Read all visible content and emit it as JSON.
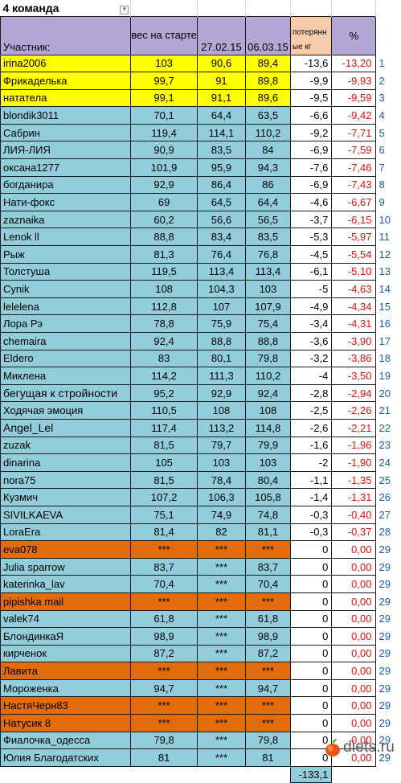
{
  "title": "4 команда",
  "headers": {
    "name": "Участник:",
    "start": "вес на старте",
    "d1": "27.02.15",
    "d2": "06.03.15",
    "lost": "потерянные кг",
    "pct": "%"
  },
  "rows": [
    {
      "name": "irina2006",
      "start": "103",
      "d1": "90,6",
      "d2": "89,4",
      "lost": "-13,6",
      "pct": "-13,20",
      "rank": "1",
      "color": "yellow"
    },
    {
      "name": "Фрикаделька",
      "start": "99,7",
      "d1": "91",
      "d2": "89,8",
      "lost": "-9,9",
      "pct": "-9,93",
      "rank": "2",
      "color": "yellow"
    },
    {
      "name": "нататела",
      "start": "99,1",
      "d1": "91,1",
      "d2": "89,6",
      "lost": "-9,5",
      "pct": "-9,59",
      "rank": "3",
      "color": "yellow"
    },
    {
      "name": "blondik3011",
      "start": "70,1",
      "d1": "64,4",
      "d2": "63,5",
      "lost": "-6,6",
      "pct": "-9,42",
      "rank": "4",
      "color": "blue"
    },
    {
      "name": "Сабрин",
      "start": "119,4",
      "d1": "114,1",
      "d2": "110,2",
      "lost": "-9,2",
      "pct": "-7,71",
      "rank": "5",
      "color": "blue"
    },
    {
      "name": "ЛИЯ-ЛИЯ",
      "start": "90,9",
      "d1": "83,5",
      "d2": "84",
      "lost": "-6,9",
      "pct": "-7,59",
      "rank": "6",
      "color": "blue"
    },
    {
      "name": "оксана1277",
      "start": "101,9",
      "d1": "95,9",
      "d2": "94,3",
      "lost": "-7,6",
      "pct": "-7,46",
      "rank": "7",
      "color": "blue"
    },
    {
      "name": "богданира",
      "start": "92,9",
      "d1": "86,4",
      "d2": "86",
      "lost": "-6,9",
      "pct": "-7,43",
      "rank": "8",
      "color": "blue"
    },
    {
      "name": "Нати-фокс",
      "start": "69",
      "d1": "64,5",
      "d2": "64,4",
      "lost": "-4,6",
      "pct": "-6,67",
      "rank": "9",
      "color": "blue"
    },
    {
      "name": "zaznaika",
      "start": "60,2",
      "d1": "56,6",
      "d2": "56,5",
      "lost": "-3,7",
      "pct": "-6,15",
      "rank": "10",
      "color": "blue"
    },
    {
      "name": "Lenok ll",
      "start": "88,8",
      "d1": "83,4",
      "d2": "83,5",
      "lost": "-5,3",
      "pct": "-5,97",
      "rank": "11",
      "color": "blue"
    },
    {
      "name": "Рыж",
      "start": "81,3",
      "d1": "76,4",
      "d2": "76,8",
      "lost": "-4,5",
      "pct": "-5,54",
      "rank": "12",
      "color": "blue"
    },
    {
      "name": "Толстуша",
      "start": "119,5",
      "d1": "113,4",
      "d2": "113,4",
      "lost": "-6,1",
      "pct": "-5,10",
      "rank": "13",
      "color": "blue"
    },
    {
      "name": "Cynik",
      "start": "108",
      "d1": "104,3",
      "d2": "103",
      "lost": "-5",
      "pct": "-4,63",
      "rank": "14",
      "color": "blue"
    },
    {
      "name": "lelelena",
      "start": "112,8",
      "d1": "107",
      "d2": "107,9",
      "lost": "-4,9",
      "pct": "-4,34",
      "rank": "15",
      "color": "blue"
    },
    {
      "name": "Лора Рэ",
      "start": "78,8",
      "d1": "75,9",
      "d2": "75,4",
      "lost": "-3,4",
      "pct": "-4,31",
      "rank": "16",
      "color": "blue"
    },
    {
      "name": "chemaira",
      "start": "92,4",
      "d1": "88,8",
      "d2": "88,8",
      "lost": "-3,6",
      "pct": "-3,90",
      "rank": "17",
      "color": "blue"
    },
    {
      "name": "Eldero",
      "start": "83",
      "d1": "80,1",
      "d2": "79,8",
      "lost": "-3,2",
      "pct": "-3,86",
      "rank": "18",
      "color": "blue"
    },
    {
      "name": "Миклена",
      "start": "114,2",
      "d1": "111,3",
      "d2": "110,2",
      "lost": "-4",
      "pct": "-3,50",
      "rank": "19",
      "color": "blue"
    },
    {
      "name": "бегущая к стройности",
      "start": "95,2",
      "d1": "92,9",
      "d2": "92,4",
      "lost": "-2,8",
      "pct": "-2,94",
      "rank": "20",
      "color": "blue"
    },
    {
      "name": "Ходячая эмоция",
      "start": "110,5",
      "d1": "108",
      "d2": "108",
      "lost": "-2,5",
      "pct": "-2,26",
      "rank": "21",
      "color": "blue"
    },
    {
      "name": "Angel_Lel",
      "start": "117,4",
      "d1": "113,2",
      "d2": "114,8",
      "lost": "-2,6",
      "pct": "-2,21",
      "rank": "22",
      "color": "blue"
    },
    {
      "name": "zuzak",
      "start": "81,5",
      "d1": "79,7",
      "d2": "79,9",
      "lost": "-1,6",
      "pct": "-1,96",
      "rank": "23",
      "color": "blue"
    },
    {
      "name": "dinarina",
      "start": "105",
      "d1": "103",
      "d2": "103",
      "lost": "-2",
      "pct": "-1,90",
      "rank": "24",
      "color": "blue"
    },
    {
      "name": "nora75",
      "start": "81,5",
      "d1": "78,4",
      "d2": "80,4",
      "lost": "-1,1",
      "pct": "-1,35",
      "rank": "25",
      "color": "blue"
    },
    {
      "name": "Кузмич",
      "start": "107,2",
      "d1": "106,3",
      "d2": "105,8",
      "lost": "-1,4",
      "pct": "-1,31",
      "rank": "26",
      "color": "blue"
    },
    {
      "name": "SIVILKAEVA",
      "start": "75,1",
      "d1": "74,9",
      "d2": "74,8",
      "lost": "-0,3",
      "pct": "-0,40",
      "rank": "27",
      "color": "blue"
    },
    {
      "name": "LoraEra",
      "start": "81,4",
      "d1": "82",
      "d2": "81,1",
      "lost": "-0,3",
      "pct": "-0,37",
      "rank": "28",
      "color": "blue"
    },
    {
      "name": "eva078",
      "start": "***",
      "d1": "***",
      "d2": "***",
      "lost": "0",
      "pct": "0,00",
      "rank": "29",
      "color": "orange"
    },
    {
      "name": "Julia sparrow",
      "start": "83,7",
      "d1": "***",
      "d2": "83,7",
      "lost": "0",
      "pct": "0,00",
      "rank": "29",
      "color": "blue"
    },
    {
      "name": "katerinka_lav",
      "start": "70,4",
      "d1": "***",
      "d2": "70,4",
      "lost": "0",
      "pct": "0,00",
      "rank": "29",
      "color": "blue"
    },
    {
      "name": "pipishka mail",
      "start": "***",
      "d1": "***",
      "d2": "***",
      "lost": "0",
      "pct": "0,00",
      "rank": "29",
      "color": "orange"
    },
    {
      "name": "valek74",
      "start": "61,8",
      "d1": "***",
      "d2": "61,8",
      "lost": "0",
      "pct": "0,00",
      "rank": "29",
      "color": "blue"
    },
    {
      "name": "БлондинкаЯ",
      "start": "98,9",
      "d1": "***",
      "d2": "98,9",
      "lost": "0",
      "pct": "0,00",
      "rank": "29",
      "color": "blue"
    },
    {
      "name": "кирченок",
      "start": "87,2",
      "d1": "***",
      "d2": "87,2",
      "lost": "0",
      "pct": "0,00",
      "rank": "29",
      "color": "blue"
    },
    {
      "name": "Лавита",
      "start": "***",
      "d1": "***",
      "d2": "***",
      "lost": "0",
      "pct": "0,00",
      "rank": "29",
      "color": "orange"
    },
    {
      "name": "Мороженка",
      "start": "94,7",
      "d1": "***",
      "d2": "94,7",
      "lost": "0",
      "pct": "0,00",
      "rank": "29",
      "color": "blue"
    },
    {
      "name": "НастяЧерн83",
      "start": "***",
      "d1": "***",
      "d2": "***",
      "lost": "0",
      "pct": "0,00",
      "rank": "29",
      "color": "orange"
    },
    {
      "name": "Натусик 8",
      "start": "***",
      "d1": "***",
      "d2": "***",
      "lost": "0",
      "pct": "0,00",
      "rank": "29",
      "color": "orange"
    },
    {
      "name": "Фиалочка_одесса",
      "start": "79,8",
      "d1": "***",
      "d2": "79,8",
      "lost": "0",
      "pct": "0,00",
      "rank": "29",
      "color": "blue"
    },
    {
      "name": "Юлия Благодатских",
      "start": "81",
      "d1": "***",
      "d2": "81",
      "lost": "0",
      "pct": "0,00",
      "rank": "29",
      "color": "blue"
    }
  ],
  "total": "-133,1",
  "logo": {
    "text": "diets.ru",
    "icon": "apple-icon"
  }
}
